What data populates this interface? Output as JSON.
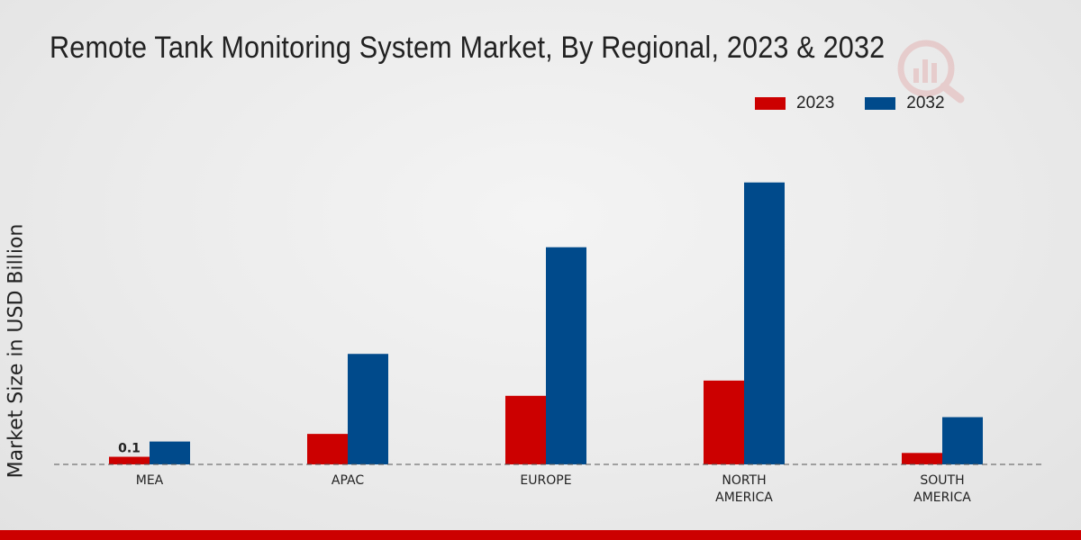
{
  "chart_data": {
    "type": "bar",
    "title": "Remote Tank Monitoring System Market, By Regional, 2023 & 2032",
    "xlabel": "",
    "ylabel": "Market Size in USD Billion",
    "categories": [
      "MEA",
      "APAC",
      "EUROPE",
      "NORTH AMERICA",
      "SOUTH AMERICA"
    ],
    "series": [
      {
        "name": "2023",
        "color": "#cc0000",
        "values": [
          0.1,
          0.4,
          0.9,
          1.1,
          0.15
        ]
      },
      {
        "name": "2032",
        "color": "#004a8b",
        "values": [
          0.3,
          1.45,
          2.85,
          3.7,
          0.62
        ]
      }
    ],
    "ylim": [
      0,
      4.5
    ],
    "data_labels": [
      {
        "series": "2023",
        "category": "MEA",
        "text": "0.1"
      }
    ],
    "legend_position": "top-right",
    "grid": false
  },
  "theme": {
    "footer_color": "#cc0000"
  }
}
